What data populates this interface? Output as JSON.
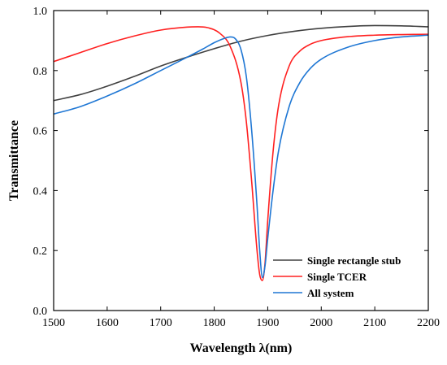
{
  "chart_data": {
    "type": "line",
    "title": "",
    "xlabel": "Wavelength λ(nm)",
    "ylabel": "Transmittance",
    "xlim": [
      1500,
      2200
    ],
    "ylim": [
      0.0,
      1.0
    ],
    "xticks": [
      1500,
      1600,
      1700,
      1800,
      1900,
      2000,
      2100,
      2200
    ],
    "yticks": [
      0.0,
      0.2,
      0.4,
      0.6,
      0.8,
      1.0
    ],
    "ytick_labels": [
      "0.0",
      "0.2",
      "0.4",
      "0.6",
      "0.8",
      "1.0"
    ],
    "grid": false,
    "legend_position": "bottom-right",
    "series": [
      {
        "name": "Single rectangle stub",
        "color": "#404040",
        "x": [
          1500,
          1550,
          1600,
          1650,
          1700,
          1750,
          1800,
          1850,
          1900,
          1950,
          2000,
          2050,
          2100,
          2150,
          2200
        ],
        "y": [
          0.7,
          0.72,
          0.748,
          0.78,
          0.815,
          0.845,
          0.873,
          0.898,
          0.917,
          0.931,
          0.941,
          0.947,
          0.95,
          0.949,
          0.946
        ]
      },
      {
        "name": "Single TCER",
        "color": "#ff2020",
        "x": [
          1500,
          1550,
          1600,
          1650,
          1700,
          1750,
          1770,
          1790,
          1810,
          1830,
          1850,
          1860,
          1870,
          1880,
          1885,
          1890,
          1895,
          1900,
          1910,
          1920,
          1940,
          1960,
          1980,
          2000,
          2050,
          2100,
          2150,
          2200
        ],
        "y": [
          0.83,
          0.86,
          0.89,
          0.915,
          0.935,
          0.945,
          0.946,
          0.942,
          0.925,
          0.88,
          0.76,
          0.63,
          0.43,
          0.2,
          0.12,
          0.1,
          0.16,
          0.3,
          0.53,
          0.68,
          0.815,
          0.865,
          0.888,
          0.9,
          0.913,
          0.918,
          0.92,
          0.921
        ]
      },
      {
        "name": "All system",
        "color": "#1f77d4",
        "x": [
          1500,
          1550,
          1600,
          1650,
          1700,
          1750,
          1780,
          1800,
          1820,
          1830,
          1840,
          1850,
          1860,
          1870,
          1880,
          1885,
          1890,
          1895,
          1900,
          1910,
          1920,
          1940,
          1960,
          1980,
          2000,
          2050,
          2100,
          2150,
          2200
        ],
        "y": [
          0.655,
          0.68,
          0.715,
          0.755,
          0.8,
          0.845,
          0.873,
          0.893,
          0.908,
          0.912,
          0.905,
          0.87,
          0.78,
          0.6,
          0.35,
          0.2,
          0.11,
          0.15,
          0.24,
          0.4,
          0.53,
          0.68,
          0.76,
          0.808,
          0.838,
          0.878,
          0.9,
          0.912,
          0.918
        ]
      }
    ]
  }
}
